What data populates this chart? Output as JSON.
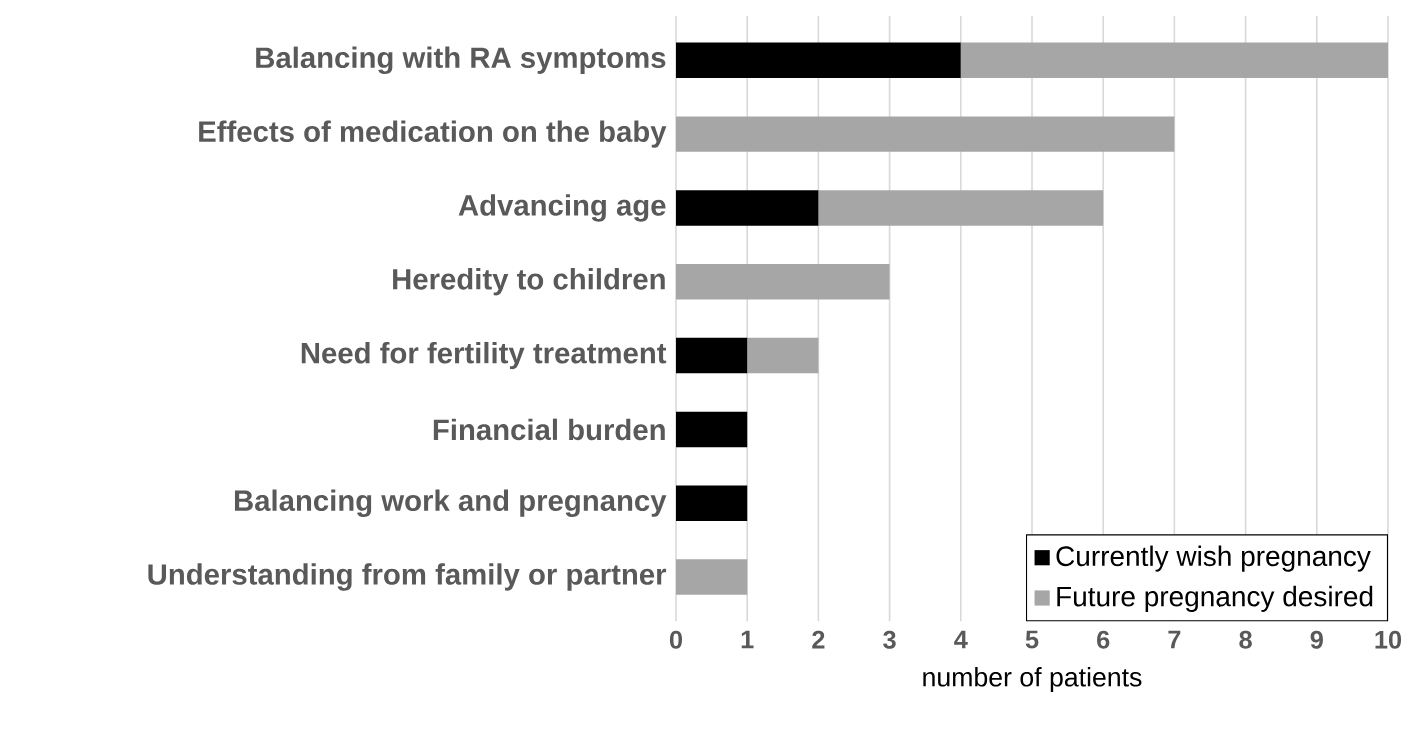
{
  "chart_data": {
    "type": "bar",
    "orientation": "horizontal",
    "stacked": true,
    "categories": [
      "Balancing with RA symptoms",
      "Effects of medication on the baby",
      "Advancing age",
      "Heredity to children",
      "Need for fertility treatment",
      "Financial burden",
      "Balancing work and pregnancy",
      "Understanding from family or partner"
    ],
    "series": [
      {
        "name": "Currently wish pregnancy",
        "color": "#000000",
        "values": [
          4,
          0,
          2,
          0,
          1,
          1,
          1,
          0
        ]
      },
      {
        "name": "Future pregnancy desired",
        "color": "#a6a6a6",
        "values": [
          6,
          7,
          4,
          3,
          1,
          0,
          0,
          1
        ]
      }
    ],
    "xlabel": "number of patients",
    "xlim": [
      0,
      10
    ],
    "xticks": [
      0,
      1,
      2,
      3,
      4,
      5,
      6,
      7,
      8,
      9,
      10
    ],
    "grid": "x",
    "legend": "bottom right"
  }
}
